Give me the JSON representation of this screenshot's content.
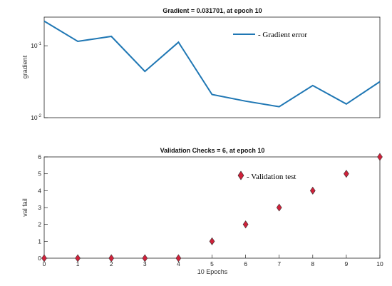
{
  "chart_data": [
    {
      "id": "gradient",
      "type": "line",
      "title": "Gradient = 0.031701, at epoch 10",
      "ylabel": "gradient",
      "xlabel": "",
      "yscale": "log",
      "ylim": [
        0.01,
        0.25
      ],
      "xlim": [
        0,
        10
      ],
      "yticks": [
        {
          "value": 0.1,
          "base": "10",
          "exp": "-1"
        },
        {
          "value": 0.01,
          "base": "10",
          "exp": "-2"
        }
      ],
      "grid": false,
      "legend_placement": "top-right",
      "series": [
        {
          "name": "- Gradient error",
          "color": "#1f77b4",
          "x": [
            0,
            1,
            2,
            3,
            4,
            5,
            6,
            7,
            8,
            9,
            10
          ],
          "y": [
            0.22,
            0.115,
            0.135,
            0.044,
            0.112,
            0.021,
            0.017,
            0.0142,
            0.028,
            0.0155,
            0.0317
          ]
        }
      ]
    },
    {
      "id": "validation",
      "type": "scatter",
      "title": "Validation Checks = 6, at epoch 10",
      "ylabel": "val fail",
      "xlabel": "10 Epochs",
      "ylim": [
        0,
        6
      ],
      "xlim": [
        0,
        10
      ],
      "yticks": [
        "0",
        "1",
        "2",
        "3",
        "4",
        "5",
        "6"
      ],
      "xticks": [
        "0",
        "1",
        "2",
        "3",
        "4",
        "5",
        "6",
        "7",
        "8",
        "9",
        "10"
      ],
      "grid": false,
      "legend_placement": "top-right",
      "series": [
        {
          "name": "- Validation test",
          "marker": "diamond",
          "color": "#d0213a",
          "x": [
            0,
            1,
            2,
            3,
            4,
            5,
            6,
            7,
            8,
            9,
            10
          ],
          "y": [
            0,
            0,
            0,
            0,
            0,
            1,
            2,
            3,
            4,
            5,
            6
          ]
        }
      ]
    }
  ]
}
